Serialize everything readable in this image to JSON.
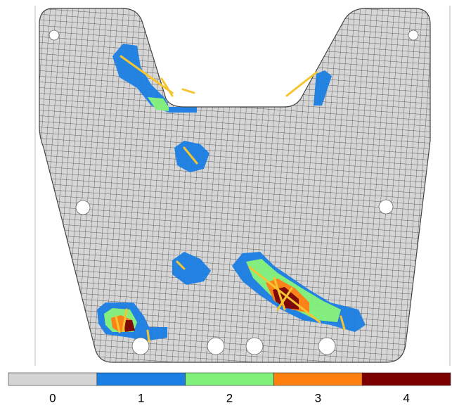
{
  "colorbar": {
    "levels": [
      {
        "label": "0",
        "color": "#d4d4d4"
      },
      {
        "label": "1",
        "color": "#1b7fe3"
      },
      {
        "label": "2",
        "color": "#80f07a"
      },
      {
        "label": "3",
        "color": "#ff7f0f"
      },
      {
        "label": "4",
        "color": "#7c0000"
      }
    ]
  }
}
